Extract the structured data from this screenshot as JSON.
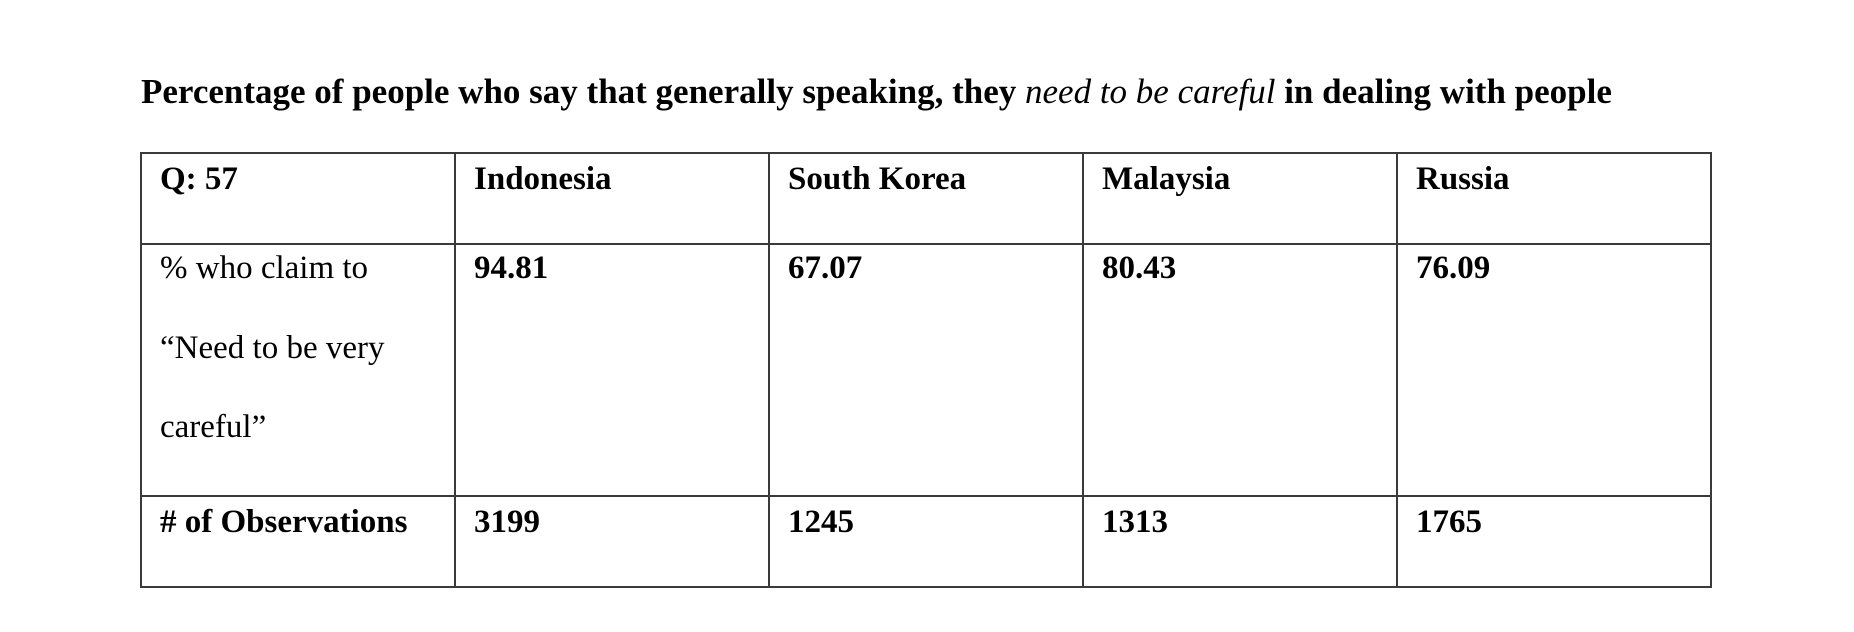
{
  "title": {
    "prefix": "Percentage of people who say that generally speaking, they ",
    "emphasis": "need to be careful",
    "suffix": " in dealing with people"
  },
  "table": {
    "header": [
      "Q: 57",
      "Indonesia",
      "South Korea",
      "Malaysia",
      "Russia"
    ],
    "percent_row": {
      "label_lines": [
        "% who claim to",
        "“Need to be very",
        "careful”"
      ],
      "values": [
        "94.81",
        "67.07",
        "80.43",
        "76.09"
      ]
    },
    "observations_row": {
      "label": "# of Observations",
      "values": [
        "3199",
        "1245",
        "1313",
        "1765"
      ]
    }
  }
}
